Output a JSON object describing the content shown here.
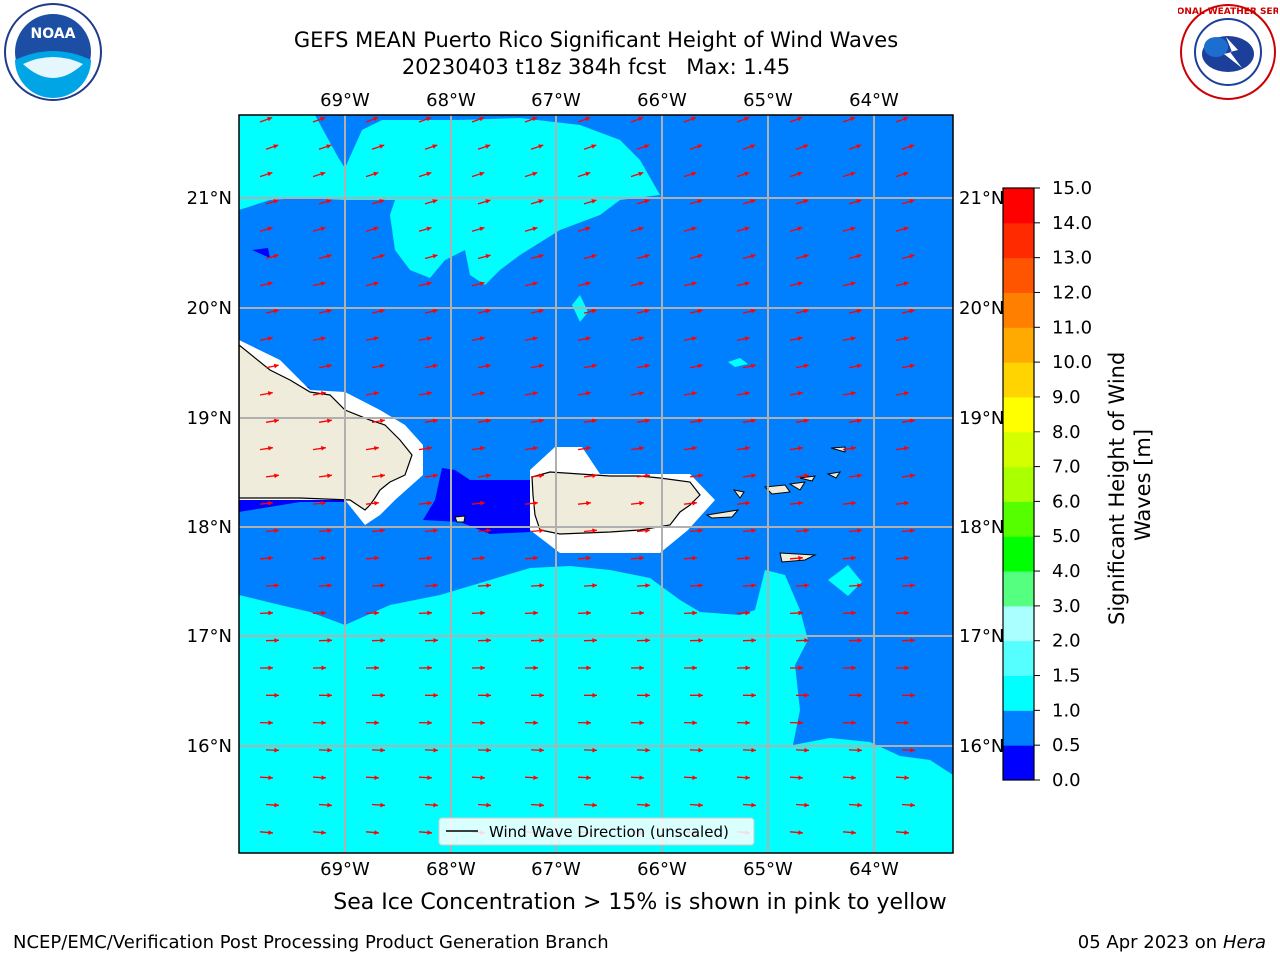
{
  "header": {
    "title_line1": "GEFS MEAN Puerto Rico Significant Height of Wind Waves",
    "title_line2": "20230403 t18z 384h fcst   Max: 1.45"
  },
  "logos": {
    "left": {
      "name": "noaa-logo",
      "text": "NOAA"
    },
    "right": {
      "name": "nws-logo",
      "text": "NATIONAL WEATHER SERVICE"
    }
  },
  "map": {
    "lon_labels": [
      "69°W",
      "68°W",
      "67°W",
      "66°W",
      "65°W",
      "64°W"
    ],
    "lat_labels": [
      "21°N",
      "20°N",
      "19°N",
      "18°N",
      "17°N",
      "16°N"
    ],
    "legend_label": "Wind Wave Direction (unscaled)",
    "colors": {
      "deep_blue": "#0000ff",
      "mid_blue": "#0080ff",
      "cyan": "#00ffff",
      "land": "#efecdc",
      "arrow": "#ff0000",
      "grid": "#b0b0b0"
    }
  },
  "colorbar": {
    "ticks": [
      "0.0",
      "0.5",
      "1.0",
      "1.5",
      "2.0",
      "3.0",
      "4.0",
      "5.0",
      "6.0",
      "7.0",
      "8.0",
      "9.0",
      "10.0",
      "11.0",
      "12.0",
      "13.0",
      "14.0",
      "15.0"
    ],
    "colors": [
      "#0000ff",
      "#0080ff",
      "#00ffff",
      "#55ffff",
      "#aaffff",
      "#55ff7f",
      "#00ff00",
      "#55ff00",
      "#aaff00",
      "#d4ff00",
      "#ffff00",
      "#ffd400",
      "#ffaa00",
      "#ff8000",
      "#ff5500",
      "#ff2a00",
      "#ff0000"
    ],
    "label": "Significant Height of Wind Waves [m]"
  },
  "caption": "Sea Ice Concentration > 15% is shown in pink to yellow",
  "footer": {
    "left": "NCEP/EMC/Verification Post Processing Product Generation Branch",
    "right_date": "05 Apr 2023 on ",
    "right_host": "Hera"
  }
}
